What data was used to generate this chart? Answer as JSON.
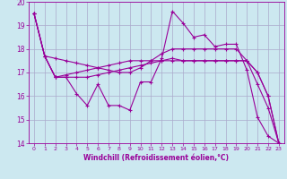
{
  "xlabel": "Windchill (Refroidissement éolien,°C)",
  "x": [
    0,
    1,
    2,
    3,
    4,
    5,
    6,
    7,
    8,
    9,
    10,
    11,
    12,
    13,
    14,
    15,
    16,
    17,
    18,
    19,
    20,
    21,
    22,
    23
  ],
  "line1": [
    19.5,
    17.7,
    16.8,
    16.8,
    16.1,
    15.6,
    16.5,
    15.6,
    15.6,
    15.4,
    16.6,
    16.6,
    17.6,
    19.6,
    19.1,
    18.5,
    18.6,
    18.1,
    18.2,
    18.2,
    17.1,
    15.1,
    14.3,
    14.0
  ],
  "line2": [
    19.5,
    17.7,
    16.8,
    16.8,
    16.8,
    16.8,
    16.9,
    17.0,
    17.1,
    17.2,
    17.3,
    17.4,
    17.5,
    17.6,
    17.5,
    17.5,
    17.5,
    17.5,
    17.5,
    17.5,
    17.5,
    17.0,
    16.0,
    14.0
  ],
  "line3": [
    19.5,
    17.7,
    17.6,
    17.5,
    17.4,
    17.3,
    17.2,
    17.1,
    17.0,
    17.0,
    17.2,
    17.5,
    17.8,
    18.0,
    18.0,
    18.0,
    18.0,
    18.0,
    18.0,
    18.0,
    17.5,
    17.0,
    16.0,
    14.0
  ],
  "line4": [
    19.5,
    17.7,
    16.8,
    16.9,
    17.0,
    17.1,
    17.2,
    17.3,
    17.4,
    17.5,
    17.5,
    17.5,
    17.5,
    17.5,
    17.5,
    17.5,
    17.5,
    17.5,
    17.5,
    17.5,
    17.5,
    16.5,
    15.5,
    14.0
  ],
  "line_color": "#990099",
  "bg_color": "#cce8f0",
  "grid_color": "#aaaacc",
  "ylim": [
    14,
    20
  ],
  "xlim": [
    -0.5,
    23.5
  ],
  "yticks": [
    14,
    15,
    16,
    17,
    18,
    19,
    20
  ],
  "xticks": [
    0,
    1,
    2,
    3,
    4,
    5,
    6,
    7,
    8,
    9,
    10,
    11,
    12,
    13,
    14,
    15,
    16,
    17,
    18,
    19,
    20,
    21,
    22,
    23
  ],
  "marker": "+"
}
